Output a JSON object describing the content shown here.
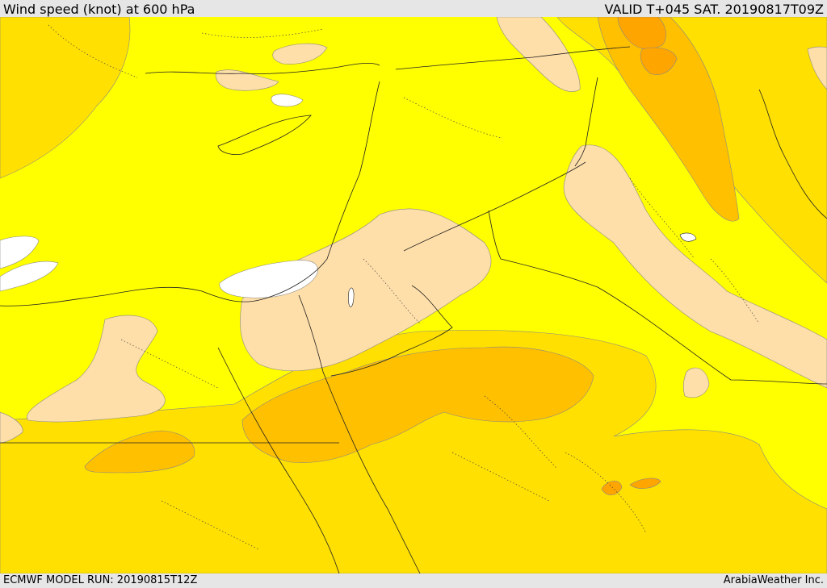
{
  "header": {
    "title": "Wind speed (knot) at 600 hPa",
    "valid_time": "VALID T+045 SAT. 20190817T09Z"
  },
  "footer": {
    "model_run": "ECMWF MODEL RUN: 20190815T12Z",
    "credit": "ArabiaWeather Inc."
  },
  "legend_colors": {
    "calm": "#ffffff",
    "light": "#ffff00",
    "moderate_low": "#ffdfa9",
    "moderate": "#ffe000",
    "fresh": "#ffc000",
    "strong": "#ffa500"
  }
}
